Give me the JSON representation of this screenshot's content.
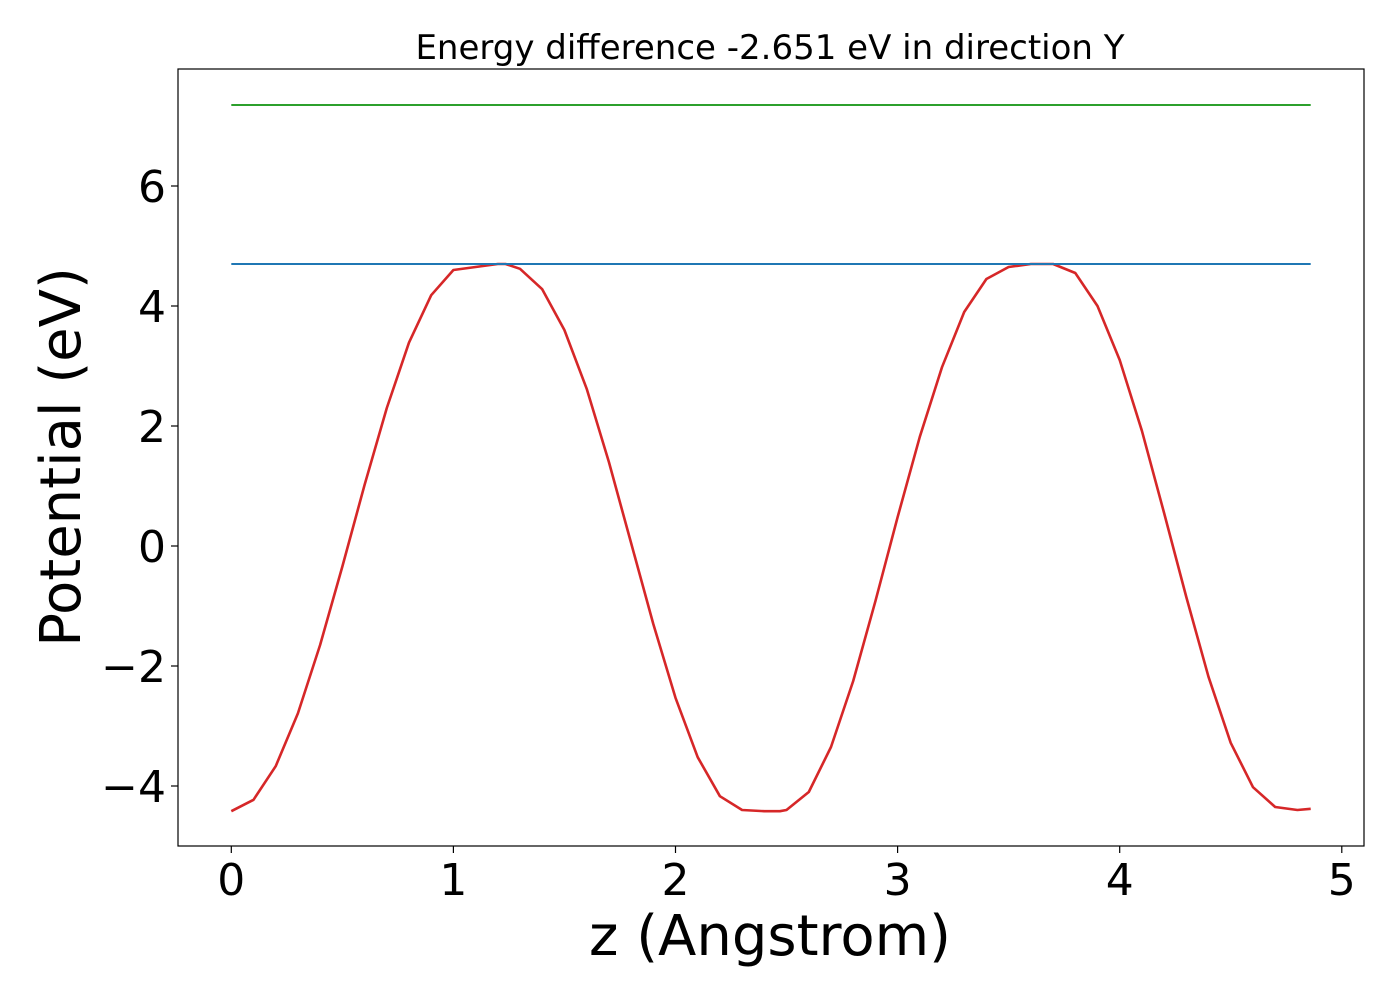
{
  "chart_data": {
    "type": "line",
    "title": "Energy difference -2.651 eV in direction Y",
    "xlabel": "z (Angstrom)",
    "ylabel": "Potential (eV)",
    "xlim": [
      -0.24,
      5.1
    ],
    "ylim": [
      -5.0,
      7.95
    ],
    "xticks": [
      0,
      1,
      2,
      3,
      4,
      5
    ],
    "yticks": [
      -4,
      -2,
      0,
      2,
      4,
      6
    ],
    "xtick_labels": [
      "0",
      "1",
      "2",
      "3",
      "4",
      "5"
    ],
    "ytick_labels": [
      "−4",
      "−2",
      "0",
      "2",
      "4",
      "6"
    ],
    "grid": false,
    "legend": "none",
    "series": [
      {
        "color": "#d62728",
        "x": [
          0.0,
          0.1,
          0.2,
          0.3,
          0.4,
          0.5,
          0.6,
          0.7,
          0.8,
          0.9,
          1.0,
          1.1,
          1.2,
          1.235,
          1.3,
          1.4,
          1.5,
          1.6,
          1.7,
          1.8,
          1.9,
          2.0,
          2.1,
          2.2,
          2.3,
          2.4,
          2.47,
          2.5,
          2.6,
          2.7,
          2.8,
          2.9,
          3.0,
          3.1,
          3.2,
          3.3,
          3.4,
          3.5,
          3.6,
          3.7,
          3.8,
          3.9,
          4.0,
          4.1,
          4.2,
          4.3,
          4.4,
          4.5,
          4.6,
          4.7,
          4.8,
          4.86
        ],
        "y": [
          -4.42,
          -4.23,
          -3.67,
          -2.79,
          -1.65,
          -0.34,
          1.02,
          2.3,
          3.39,
          4.18,
          4.6,
          4.65,
          4.7,
          4.7,
          4.62,
          4.28,
          3.6,
          2.62,
          1.4,
          0.05,
          -1.3,
          -2.53,
          -3.52,
          -4.17,
          -4.4,
          -4.42,
          -4.42,
          -4.4,
          -4.1,
          -3.35,
          -2.25,
          -0.92,
          0.48,
          1.82,
          2.98,
          3.9,
          4.45,
          4.65,
          4.7,
          4.7,
          4.55,
          4.0,
          3.1,
          1.92,
          0.55,
          -0.85,
          -2.18,
          -3.28,
          -4.02,
          -4.35,
          -4.4,
          -4.38
        ]
      },
      {
        "color": "#1f77b4",
        "x": [
          0.0,
          4.86
        ],
        "y": [
          4.7,
          4.7
        ]
      },
      {
        "color": "#2ca02c",
        "x": [
          0.0,
          4.86
        ],
        "y": [
          7.35,
          7.35
        ]
      }
    ]
  }
}
